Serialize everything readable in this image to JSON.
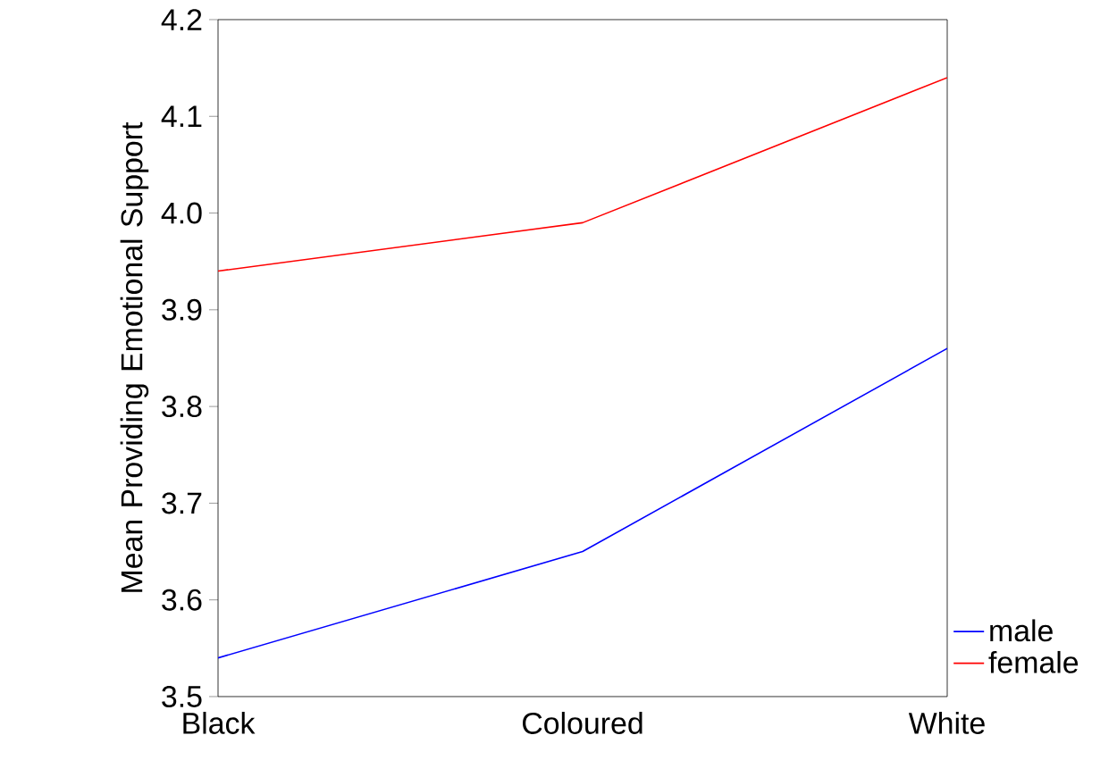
{
  "chart_data": {
    "type": "line",
    "ylabel": "Mean Providing Emotional Support",
    "categories": [
      "Black",
      "Coloured",
      "White"
    ],
    "series": [
      {
        "name": "male",
        "color": "#0000ff",
        "values": [
          3.54,
          3.65,
          3.86
        ]
      },
      {
        "name": "female",
        "color": "#ff0000",
        "values": [
          3.94,
          3.99,
          4.14
        ]
      }
    ],
    "ylim": [
      3.5,
      4.2
    ],
    "yticks": [
      3.5,
      3.6,
      3.7,
      3.8,
      3.9,
      {
        "value": 4.0,
        "label": "4.0"
      },
      4.1,
      4.2
    ],
    "grid": false,
    "legend": "bottom right",
    "marker": "none",
    "line_style": "solid"
  }
}
